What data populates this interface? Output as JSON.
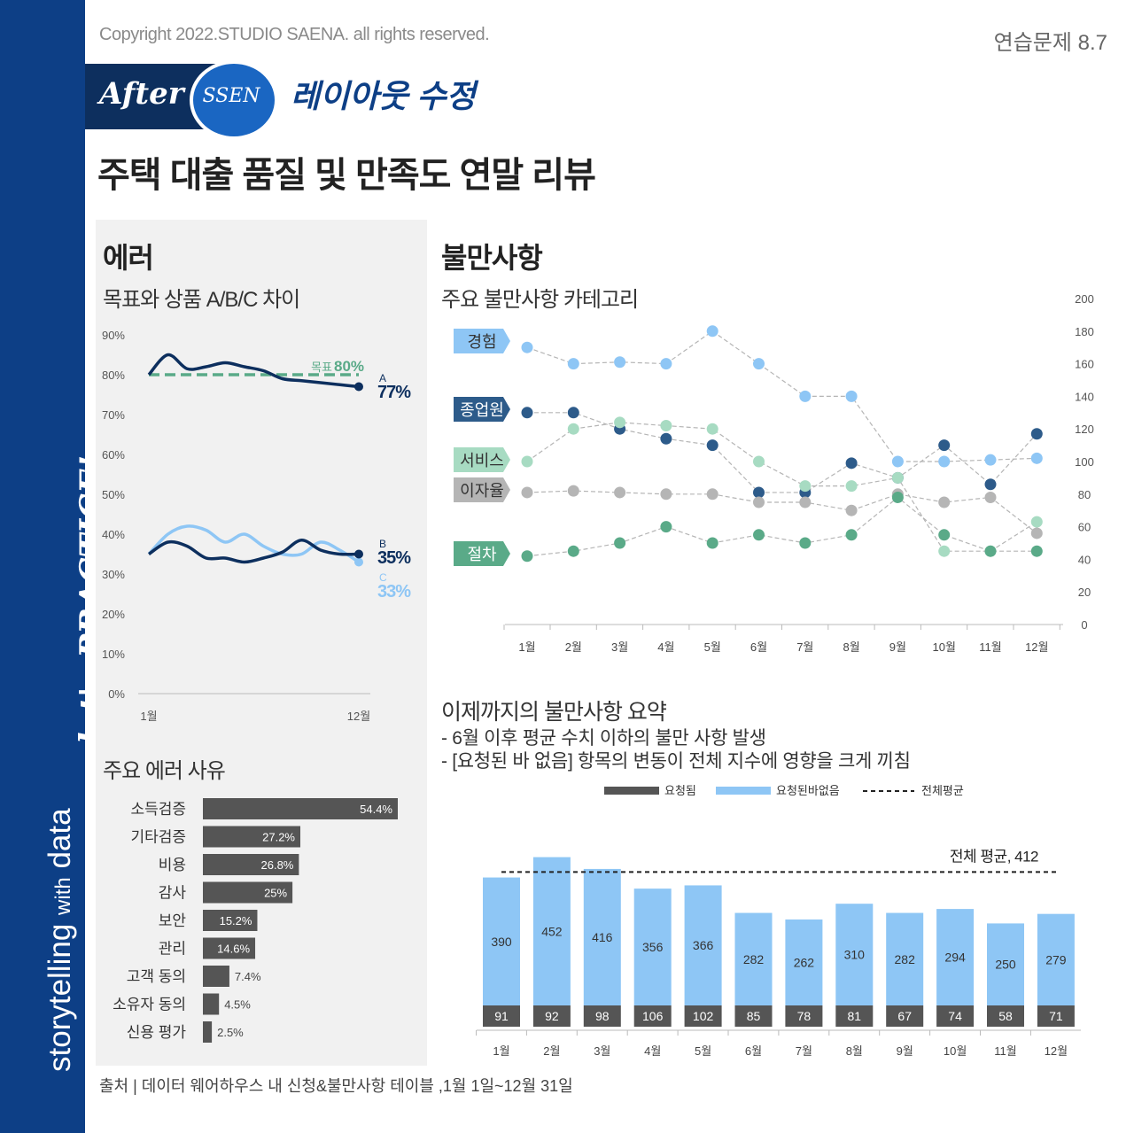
{
  "header": {
    "copyright": "Copyright 2022.STUDIO SAENA. all rights reserved.",
    "exercise": "연습문제 8.7",
    "badge_after": "After",
    "badge_ssen": "SSEN",
    "badge_title": "레이아웃 수정",
    "title": "주택 대출 품질 및 만족도 연말 리뷰"
  },
  "sidebar": {
    "text_main": "storytelling",
    "text_with": "with",
    "text_data": "data",
    "script": "let's PRACTICE!"
  },
  "colors": {
    "navy": "#0d3f86",
    "dark_navy": "#0d2f5e",
    "light_blue": "#8ec6f5",
    "green": "#5aaa88",
    "light_green": "#a7dbc2",
    "gray": "#b5b5b5",
    "dark_gray": "#555555"
  },
  "error_section": {
    "title": "에러",
    "subtitle": "목표와 상품 A/B/C 차이",
    "chart_data": {
      "type": "line",
      "yticks": [
        "90%",
        "80%",
        "70%",
        "60%",
        "50%",
        "40%",
        "30%",
        "20%",
        "10%",
        "0%"
      ],
      "ylim": [
        0,
        90
      ],
      "x_start_label": "1월",
      "x_end_label": "12월",
      "target": {
        "label": "목표",
        "value_label": "80%",
        "value": 80
      },
      "series": [
        {
          "name": "A",
          "end_label": "77%",
          "values": [
            80,
            85,
            81.5,
            82,
            83,
            82,
            81,
            79,
            78.5,
            78,
            77.5,
            77
          ]
        },
        {
          "name": "B",
          "end_label": "35%",
          "values": [
            35,
            38,
            37,
            34,
            34,
            33,
            34,
            35.5,
            38.5,
            36,
            35,
            35
          ]
        },
        {
          "name": "C",
          "end_label": "33%",
          "values": [
            35,
            40,
            42,
            41,
            38,
            40,
            37,
            35,
            35,
            38,
            36,
            33
          ]
        }
      ]
    }
  },
  "error_reasons": {
    "title": "주요 에러 사유",
    "chart_data": {
      "type": "bar",
      "categories": [
        "소득검증",
        "기타검증",
        "비용",
        "감사",
        "보안",
        "관리",
        "고객 동의",
        "소유자 동의",
        "신용 평가"
      ],
      "values": [
        54.4,
        27.2,
        26.8,
        25,
        15.2,
        14.6,
        7.4,
        4.5,
        2.5
      ],
      "labels": [
        "54.4%",
        "27.2%",
        "26.8%",
        "25%",
        "15.2%",
        "14.6%",
        "7.4%",
        "4.5%",
        "2.5%"
      ]
    }
  },
  "complaints": {
    "title": "불만사항",
    "subtitle": "주요 불만사항 카테고리",
    "chart_data": {
      "type": "scatter",
      "months": [
        "1월",
        "2월",
        "3월",
        "4월",
        "5월",
        "6월",
        "7월",
        "8월",
        "9월",
        "10월",
        "11월",
        "12월"
      ],
      "yticks": [
        "200",
        "180",
        "160",
        "140",
        "120",
        "100",
        "80",
        "60",
        "40",
        "20",
        "0"
      ],
      "ylim": [
        0,
        200
      ],
      "series": [
        {
          "name": "경험",
          "color": "#8ec6f5",
          "label_text": "#333333",
          "values": [
            170,
            160,
            161,
            160,
            180,
            160,
            140,
            140,
            100,
            100,
            101,
            102
          ]
        },
        {
          "name": "종업원",
          "color": "#2d5b8a",
          "label_text": "#ffffff",
          "values": [
            130,
            130,
            120,
            114,
            110,
            81,
            81,
            99,
            90,
            110,
            86,
            117
          ]
        },
        {
          "name": "서비스",
          "color": "#a7dbc2",
          "label_text": "#333333",
          "values": [
            100,
            120,
            124,
            122,
            120,
            100,
            85,
            85,
            90,
            45,
            45,
            63
          ]
        },
        {
          "name": "이자율",
          "color": "#b5b5b5",
          "label_text": "#333333",
          "values": [
            81,
            82,
            81,
            80,
            80,
            75,
            75,
            70,
            80,
            75,
            78,
            56
          ]
        },
        {
          "name": "절차",
          "color": "#5aaa88",
          "label_text": "#ffffff",
          "values": [
            42,
            45,
            50,
            60,
            50,
            55,
            50,
            55,
            78,
            55,
            45,
            45
          ]
        }
      ]
    }
  },
  "summary": {
    "title": "이제까지의 불만사항 요약",
    "line1": "- 6월 이후 평균 수치 이하의 불만 사항 발생",
    "line2": "- [요청된 바 없음] 항목의 변동이 전체 지수에 영향을 크게 끼침",
    "chart_data": {
      "type": "bar",
      "stacked": true,
      "categories": [
        "1월",
        "2월",
        "3월",
        "4월",
        "5월",
        "6월",
        "7월",
        "8월",
        "9월",
        "10월",
        "11월",
        "12월"
      ],
      "legend": [
        "요청됨",
        "요청된바없음",
        "전체평균"
      ],
      "series": [
        {
          "name": "요청됨",
          "values": [
            91,
            92,
            98,
            106,
            102,
            85,
            78,
            81,
            67,
            74,
            58,
            71
          ]
        },
        {
          "name": "요청된바없음",
          "values": [
            390,
            452,
            416,
            356,
            366,
            282,
            262,
            310,
            282,
            294,
            250,
            279
          ]
        }
      ],
      "average": 412,
      "average_label": "전체 평균, 412"
    }
  },
  "source": "출처 | 데이터 웨어하우스 내 신청&불만사항 테이블 ,1월 1일~12월 31일"
}
